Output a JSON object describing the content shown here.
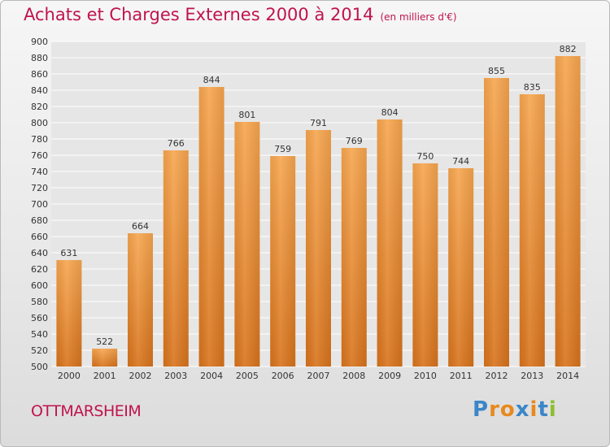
{
  "header": {
    "title": "Achats et Charges Externes 2000 à 2014",
    "unit": "(en milliers d'€)"
  },
  "footer": {
    "city": "OTTMARSHEIM",
    "brand": "Proxiti"
  },
  "colors": {
    "title": "#c0134f",
    "bar_top": "#f7a64f",
    "bar_bottom": "#d8731c",
    "grid": "#ffffff",
    "brand_letters": [
      "#3a86c8",
      "#e8891d",
      "#e8891d",
      "#3a86c8",
      "#e8891d",
      "#3a86c8",
      "#8bbf2f"
    ]
  },
  "chart_data": {
    "type": "bar",
    "title": "Achats et Charges Externes 2000 à 2014",
    "subtitle": "(en milliers d'€)",
    "xlabel": "",
    "ylabel": "",
    "categories": [
      "2000",
      "2001",
      "2002",
      "2003",
      "2004",
      "2005",
      "2006",
      "2007",
      "2008",
      "2009",
      "2010",
      "2011",
      "2012",
      "2013",
      "2014"
    ],
    "values": [
      631,
      522,
      664,
      766,
      844,
      801,
      759,
      791,
      769,
      804,
      750,
      744,
      855,
      835,
      882
    ],
    "ylim": [
      500,
      900
    ],
    "yticks": [
      500,
      520,
      540,
      560,
      580,
      600,
      620,
      640,
      660,
      680,
      700,
      720,
      740,
      760,
      780,
      800,
      820,
      840,
      860,
      880,
      900
    ],
    "grid": true,
    "legend": "none"
  }
}
